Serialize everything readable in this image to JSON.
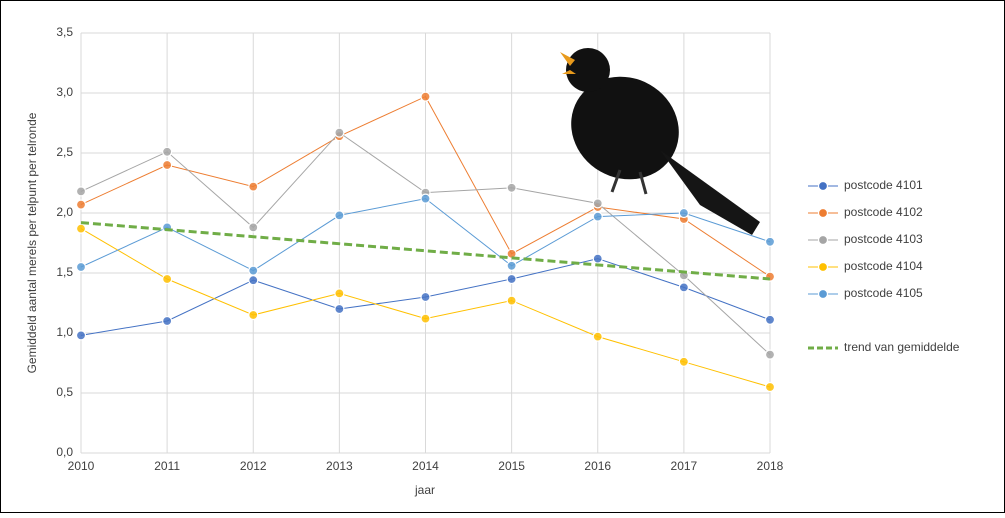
{
  "chart_data": {
    "type": "line",
    "y_label": "Gemiddeld aantal merels per telpunt per telronde",
    "x_label": "jaar",
    "x": [
      2010,
      2011,
      2012,
      2013,
      2014,
      2015,
      2016,
      2017,
      2018
    ],
    "xlim": [
      2010,
      2018
    ],
    "xticks": [
      2010,
      2011,
      2012,
      2013,
      2014,
      2015,
      2016,
      2017,
      2018
    ],
    "ylim": [
      0,
      3.5
    ],
    "yticks": [
      {
        "value": 0,
        "label": "0,0"
      },
      {
        "value": 0.5,
        "label": "0,5"
      },
      {
        "value": 1,
        "label": "1,0"
      },
      {
        "value": 1.5,
        "label": "1,5"
      },
      {
        "value": 2,
        "label": "2,0"
      },
      {
        "value": 2.5,
        "label": "2,5"
      },
      {
        "value": 3,
        "label": "3,0"
      },
      {
        "value": 3.5,
        "label": "3,5"
      }
    ],
    "grid": true,
    "legend": "right",
    "series": [
      {
        "name": "postcode 4101",
        "color": "#4472c4",
        "values": [
          0.98,
          1.1,
          1.44,
          1.2,
          1.3,
          1.45,
          1.62,
          1.38,
          1.11
        ]
      },
      {
        "name": "postcode 4102",
        "color": "#ed7d31",
        "values": [
          2.07,
          2.4,
          2.22,
          2.64,
          2.97,
          1.66,
          2.05,
          1.95,
          1.47
        ]
      },
      {
        "name": "postcode 4103",
        "color": "#a5a5a5",
        "values": [
          2.18,
          2.51,
          1.88,
          2.67,
          2.17,
          2.21,
          2.08,
          1.48,
          0.82
        ]
      },
      {
        "name": "postcode 4104",
        "color": "#ffc000",
        "values": [
          1.87,
          1.45,
          1.15,
          1.33,
          1.12,
          1.27,
          0.97,
          0.76,
          0.55
        ]
      },
      {
        "name": "postcode 4105",
        "color": "#5b9bd5",
        "values": [
          1.55,
          1.88,
          1.52,
          1.98,
          2.12,
          1.56,
          1.97,
          2.0,
          1.76
        ]
      },
      {
        "name": "trend van gemiddelde",
        "color": "#70ad47",
        "style": "dashed",
        "x": [
          2010,
          2018
        ],
        "values": [
          1.92,
          1.45
        ]
      }
    ]
  }
}
